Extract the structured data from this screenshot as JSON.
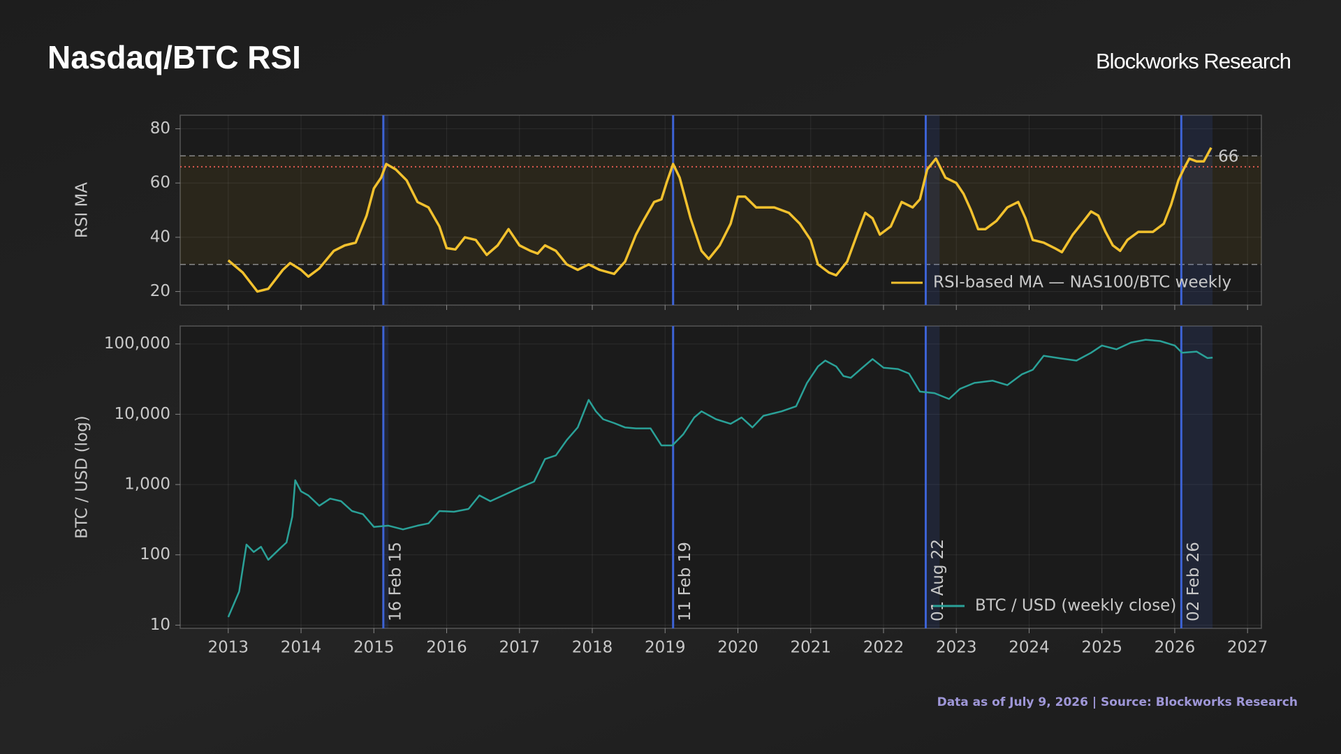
{
  "header": {
    "title": "Nasdaq/BTC RSI",
    "brand": "Blockworks Research"
  },
  "footer": "Data as of July 9, 2026 | Source: Blockworks Research",
  "chart_data": [
    {
      "type": "line",
      "y_label": "RSI MA",
      "xlim": [
        2012.34,
        2027.19
      ],
      "ylim": [
        15,
        85
      ],
      "yticks": [
        20,
        40,
        60,
        80
      ],
      "xticks": [
        2013,
        2014,
        2015,
        2016,
        2017,
        2018,
        2019,
        2020,
        2021,
        2022,
        2023,
        2024,
        2025,
        2026,
        2027
      ],
      "grid": true,
      "legend": "lower right",
      "band": [
        30,
        70
      ],
      "band_color": "#e6b428",
      "marker_line": 66,
      "marker_color": "#e05a4f",
      "x": [
        2013.0,
        2013.2,
        2013.4,
        2013.55,
        2013.75,
        2013.85,
        2014.0,
        2014.1,
        2014.25,
        2014.45,
        2014.6,
        2014.75,
        2014.9,
        2015.0,
        2015.1,
        2015.17,
        2015.3,
        2015.45,
        2015.6,
        2015.75,
        2015.9,
        2016.0,
        2016.12,
        2016.25,
        2016.4,
        2016.55,
        2016.7,
        2016.85,
        2017.0,
        2017.15,
        2017.25,
        2017.35,
        2017.5,
        2017.65,
        2017.8,
        2017.95,
        2018.1,
        2018.3,
        2018.45,
        2018.6,
        2018.7,
        2018.85,
        2018.95,
        2019.02,
        2019.11,
        2019.2,
        2019.35,
        2019.5,
        2019.6,
        2019.75,
        2019.9,
        2020.0,
        2020.1,
        2020.25,
        2020.5,
        2020.7,
        2020.85,
        2021.0,
        2021.1,
        2021.25,
        2021.35,
        2021.5,
        2021.65,
        2021.75,
        2021.85,
        2021.95,
        2022.1,
        2022.25,
        2022.4,
        2022.5,
        2022.6,
        2022.72,
        2022.85,
        2023.0,
        2023.1,
        2023.2,
        2023.3,
        2023.4,
        2023.55,
        2023.7,
        2023.85,
        2023.95,
        2024.05,
        2024.2,
        2024.35,
        2024.45,
        2024.6,
        2024.75,
        2024.85,
        2024.95,
        2025.05,
        2025.15,
        2025.25,
        2025.35,
        2025.5,
        2025.7,
        2025.85,
        2025.95,
        2026.05,
        2026.12,
        2026.2,
        2026.3,
        2026.4,
        2026.5
      ],
      "series": [
        {
          "name": "RSI-based MA — NAS100/BTC weekly",
          "color": "#f2c12e",
          "values": [
            31.5,
            27,
            20,
            21,
            28,
            30.5,
            28,
            25.5,
            28.5,
            35,
            37,
            38,
            48,
            58,
            62,
            67,
            65,
            61,
            53,
            51,
            44,
            36,
            35.5,
            40,
            39,
            33.5,
            37,
            43,
            37,
            35,
            34,
            37,
            35,
            30,
            28,
            30,
            28,
            26.5,
            31,
            41,
            46,
            53,
            54,
            60,
            67,
            62,
            47,
            35,
            32,
            37,
            45,
            55,
            55,
            51,
            51,
            49,
            45,
            39,
            30,
            27,
            26,
            31,
            42,
            49,
            47,
            41,
            44,
            53,
            51,
            54,
            65,
            69,
            62,
            60,
            56,
            50,
            43,
            43,
            46,
            51,
            53,
            47,
            39,
            38,
            36,
            34.5,
            41,
            46,
            49.5,
            48,
            42,
            37,
            35,
            39,
            42,
            42,
            45,
            52,
            61,
            65,
            69,
            68,
            68,
            73
          ]
        }
      ]
    },
    {
      "type": "line",
      "y_label": "BTC / USD (log)",
      "log": true,
      "xlim": [
        2012.34,
        2027.19
      ],
      "ylim": [
        9,
        180000
      ],
      "yticks": [
        10,
        100,
        {
          "value": 1000,
          "label": "1,000"
        },
        {
          "value": 10000,
          "label": "10,000"
        },
        {
          "value": 100000,
          "label": "100,000"
        }
      ],
      "xticks": [
        2013,
        2014,
        2015,
        2016,
        2017,
        2018,
        2019,
        2020,
        2021,
        2022,
        2023,
        2024,
        2025,
        2026,
        2027
      ],
      "grid": true,
      "legend": "lower right",
      "events": [
        {
          "x": 2015.13,
          "label": "16 Feb 15"
        },
        {
          "x": 2019.11,
          "label": "11 Feb 19"
        },
        {
          "x": 2022.58,
          "label": "01 Aug 22"
        },
        {
          "x": 2026.09,
          "label": "02 Feb 26"
        }
      ],
      "event_color": "#3d63d6",
      "shaded": [
        [
          2015.13,
          2015.2
        ],
        [
          2022.58,
          2022.77
        ],
        [
          2026.09,
          2026.52
        ]
      ],
      "x": [
        2013.0,
        2013.15,
        2013.25,
        2013.35,
        2013.45,
        2013.55,
        2013.7,
        2013.8,
        2013.88,
        2013.92,
        2014.0,
        2014.1,
        2014.25,
        2014.4,
        2014.55,
        2014.7,
        2014.85,
        2015.0,
        2015.2,
        2015.4,
        2015.6,
        2015.75,
        2015.9,
        2016.1,
        2016.3,
        2016.45,
        2016.6,
        2016.8,
        2017.0,
        2017.2,
        2017.35,
        2017.5,
        2017.65,
        2017.8,
        2017.95,
        2018.05,
        2018.15,
        2018.3,
        2018.45,
        2018.6,
        2018.8,
        2018.95,
        2019.1,
        2019.25,
        2019.4,
        2019.5,
        2019.7,
        2019.9,
        2020.05,
        2020.2,
        2020.35,
        2020.6,
        2020.8,
        2020.95,
        2021.1,
        2021.2,
        2021.35,
        2021.45,
        2021.55,
        2021.7,
        2021.85,
        2022.0,
        2022.2,
        2022.35,
        2022.5,
        2022.7,
        2022.9,
        2023.05,
        2023.25,
        2023.5,
        2023.7,
        2023.9,
        2024.05,
        2024.2,
        2024.45,
        2024.65,
        2024.85,
        2025.0,
        2025.2,
        2025.4,
        2025.6,
        2025.8,
        2026.0,
        2026.1,
        2026.3,
        2026.45,
        2026.52
      ],
      "series": [
        {
          "name": "BTC / USD (weekly close)",
          "color": "#2aa198",
          "values": [
            13,
            30,
            140,
            110,
            130,
            85,
            120,
            150,
            350,
            1150,
            800,
            700,
            500,
            630,
            580,
            420,
            380,
            250,
            260,
            230,
            260,
            280,
            420,
            410,
            450,
            700,
            580,
            720,
            900,
            1100,
            2300,
            2600,
            4300,
            6500,
            16000,
            11000,
            8500,
            7500,
            6500,
            6300,
            6300,
            3600,
            3600,
            5200,
            9000,
            11000,
            8500,
            7300,
            9000,
            6500,
            9500,
            11000,
            13000,
            28000,
            48000,
            58000,
            48000,
            35000,
            33000,
            45000,
            61000,
            46000,
            44000,
            38000,
            21000,
            20000,
            16500,
            23000,
            28000,
            30000,
            26000,
            37000,
            43000,
            68000,
            62000,
            58000,
            75000,
            95000,
            84000,
            105000,
            115000,
            110000,
            95000,
            75000,
            78000,
            63000,
            64000
          ]
        }
      ]
    }
  ]
}
